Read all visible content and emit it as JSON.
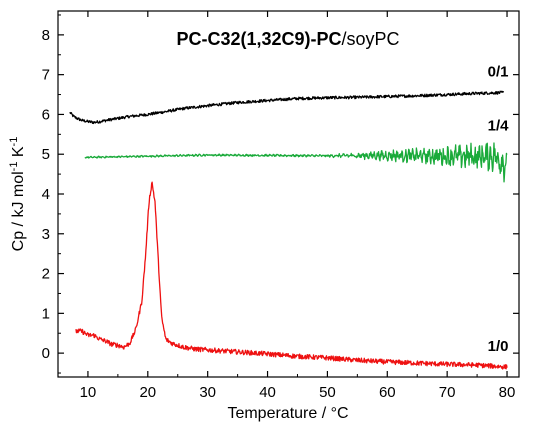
{
  "chart_data": {
    "type": "line",
    "title_bold": "PC-C32(1,32C9)-PC",
    "title_rest": "/soyPC",
    "xlabel": "Temperature / °C",
    "ylabel": {
      "base": "Cp / kJ mol",
      "sup1": "-1",
      "mid": " K",
      "sup2": "-1"
    },
    "xlim": [
      5,
      82
    ],
    "ylim": [
      -0.6,
      8.6
    ],
    "xticks": [
      10,
      20,
      30,
      40,
      50,
      60,
      70,
      80
    ],
    "yticks": [
      0,
      1,
      2,
      3,
      4,
      5,
      6,
      7,
      8
    ],
    "grid": false,
    "colors": {
      "series_01": "#000000",
      "series_14": "#1aaa3a",
      "series_10": "#ee1111"
    },
    "series": [
      {
        "name": "0/1",
        "color": "#000000",
        "noise": 0.035,
        "points": [
          [
            7.0,
            6.05
          ],
          [
            7.6,
            5.95
          ],
          [
            8.2,
            5.9
          ],
          [
            9,
            5.85
          ],
          [
            10,
            5.82
          ],
          [
            11,
            5.8
          ],
          [
            12,
            5.82
          ],
          [
            13,
            5.85
          ],
          [
            15,
            5.9
          ],
          [
            17,
            5.95
          ],
          [
            20,
            6.0
          ],
          [
            23,
            6.07
          ],
          [
            26,
            6.15
          ],
          [
            30,
            6.22
          ],
          [
            35,
            6.3
          ],
          [
            40,
            6.35
          ],
          [
            45,
            6.4
          ],
          [
            50,
            6.42
          ],
          [
            55,
            6.43
          ],
          [
            60,
            6.45
          ],
          [
            65,
            6.47
          ],
          [
            70,
            6.5
          ],
          [
            75,
            6.53
          ],
          [
            79.5,
            6.55
          ]
        ]
      },
      {
        "name": "1/4",
        "color": "#1aaa3a",
        "noise_profile": [
          [
            9,
            0.015
          ],
          [
            50,
            0.02
          ],
          [
            56,
            0.06
          ],
          [
            63,
            0.12
          ],
          [
            70,
            0.18
          ],
          [
            76,
            0.24
          ],
          [
            80,
            0.3
          ]
        ],
        "points": [
          [
            9.5,
            4.92
          ],
          [
            20,
            4.95
          ],
          [
            30,
            4.98
          ],
          [
            40,
            4.97
          ],
          [
            50,
            4.96
          ],
          [
            60,
            4.97
          ],
          [
            70,
            4.95
          ],
          [
            78,
            4.95
          ],
          [
            80,
            4.7
          ]
        ]
      },
      {
        "name": "1/0",
        "color": "#ee1111",
        "noise": 0.06,
        "points": [
          [
            8,
            0.55
          ],
          [
            9,
            0.55
          ],
          [
            10,
            0.45
          ],
          [
            11,
            0.45
          ],
          [
            12,
            0.35
          ],
          [
            13,
            0.3
          ],
          [
            14,
            0.22
          ],
          [
            15,
            0.2
          ],
          [
            16,
            0.15
          ],
          [
            17,
            0.25
          ],
          [
            18,
            0.6
          ],
          [
            19,
            1.3
          ],
          [
            19.6,
            2.4
          ],
          [
            20.2,
            3.8
          ],
          [
            20.7,
            4.3
          ],
          [
            21.2,
            3.8
          ],
          [
            21.8,
            2.2
          ],
          [
            22.3,
            0.9
          ],
          [
            23,
            0.35
          ],
          [
            24,
            0.25
          ],
          [
            26,
            0.15
          ],
          [
            28,
            0.1
          ],
          [
            30,
            0.08
          ],
          [
            35,
            0.03
          ],
          [
            40,
            -0.02
          ],
          [
            45,
            -0.08
          ],
          [
            50,
            -0.12
          ],
          [
            55,
            -0.18
          ],
          [
            60,
            -0.22
          ],
          [
            65,
            -0.25
          ],
          [
            70,
            -0.28
          ],
          [
            75,
            -0.3
          ],
          [
            80,
            -0.35
          ]
        ]
      }
    ],
    "series_labels": [
      {
        "text": "0/1",
        "x": 78.5,
        "y": 6.95
      },
      {
        "text": "1/4",
        "x": 78.5,
        "y": 5.6
      },
      {
        "text": "1/0",
        "x": 78.5,
        "y": 0.05
      }
    ]
  }
}
